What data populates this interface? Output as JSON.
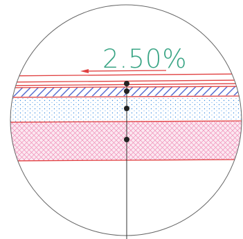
{
  "detail": {
    "slope_label": "2.50%"
  }
}
